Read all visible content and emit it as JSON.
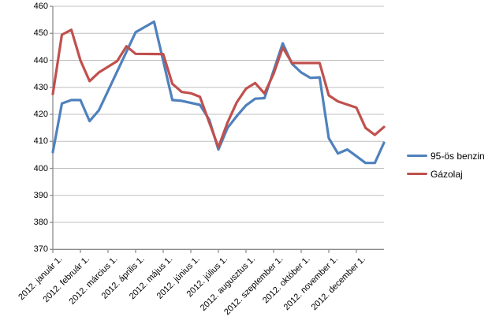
{
  "chart_data": {
    "type": "line",
    "title": "",
    "x_axis": {
      "categories": [
        "2012. január 1.",
        "2012. február 1.",
        "2012. március 1.",
        "2012. április 1.",
        "2012. május 1.",
        "2012. június 1.",
        "2012. július 1.",
        "2012. augusztus 1.",
        "2012. szeptember 1.",
        "2012. október 1.",
        "2012. november 1.",
        "2012. december 1."
      ],
      "x_unit": "category_axis_position (0 = first category, 1 = second, ... 12 = end of axis)",
      "x_range": [
        0,
        12
      ]
    },
    "y_axis": {
      "min": 370,
      "max": 460,
      "step": 10,
      "ticks": [
        460,
        450,
        440,
        430,
        420,
        410,
        400,
        390,
        380,
        370
      ]
    },
    "grid": true,
    "legend_position": "right",
    "series": [
      {
        "name": "95-ös benzin",
        "color": "#4F81BD",
        "points": [
          [
            0,
            406
          ],
          [
            0.33,
            424
          ],
          [
            0.67,
            425.3
          ],
          [
            1,
            425.3
          ],
          [
            1.33,
            417.5
          ],
          [
            1.67,
            421.5
          ],
          [
            3,
            450.4
          ],
          [
            3.67,
            454.3
          ],
          [
            4.33,
            425.3
          ],
          [
            4.67,
            425
          ],
          [
            5.33,
            423.5
          ],
          [
            5.67,
            418
          ],
          [
            6,
            407
          ],
          [
            6.33,
            415
          ],
          [
            6.67,
            419.4
          ],
          [
            7,
            423.3
          ],
          [
            7.33,
            425.8
          ],
          [
            7.67,
            426
          ],
          [
            8.33,
            446.3
          ],
          [
            8.67,
            438.7
          ],
          [
            9,
            435.5
          ],
          [
            9.33,
            433.5
          ],
          [
            9.67,
            433.7
          ],
          [
            10,
            411.2
          ],
          [
            10.33,
            405.5
          ],
          [
            10.67,
            407
          ],
          [
            11,
            404.5
          ],
          [
            11.33,
            402
          ],
          [
            11.67,
            402
          ],
          [
            12,
            409.5
          ]
        ]
      },
      {
        "name": "Gázolaj",
        "color": "#C0504D",
        "points": [
          [
            0,
            427.5
          ],
          [
            0.33,
            449.5
          ],
          [
            0.67,
            451.3
          ],
          [
            1,
            440
          ],
          [
            1.33,
            432.3
          ],
          [
            1.67,
            435.5
          ],
          [
            2.33,
            439.7
          ],
          [
            2.67,
            445.2
          ],
          [
            3,
            442.4
          ],
          [
            4,
            442.3
          ],
          [
            4.33,
            431.3
          ],
          [
            4.67,
            428.3
          ],
          [
            5,
            427.8
          ],
          [
            5.33,
            426.5
          ],
          [
            5.67,
            417
          ],
          [
            6,
            407.8
          ],
          [
            6.33,
            417
          ],
          [
            6.67,
            424.5
          ],
          [
            7,
            429.5
          ],
          [
            7.33,
            431.6
          ],
          [
            7.67,
            427.7
          ],
          [
            8,
            435
          ],
          [
            8.33,
            444.7
          ],
          [
            8.67,
            439
          ],
          [
            9.67,
            439
          ],
          [
            10,
            427
          ],
          [
            10.33,
            424.8
          ],
          [
            11,
            422.5
          ],
          [
            11.33,
            415
          ],
          [
            11.67,
            412.4
          ],
          [
            12,
            415.3
          ]
        ]
      }
    ],
    "colors": {
      "gridline": "#BFBFBF",
      "axis": "#8C8C8C",
      "text": "#000000",
      "background": "#FFFFFF"
    }
  }
}
